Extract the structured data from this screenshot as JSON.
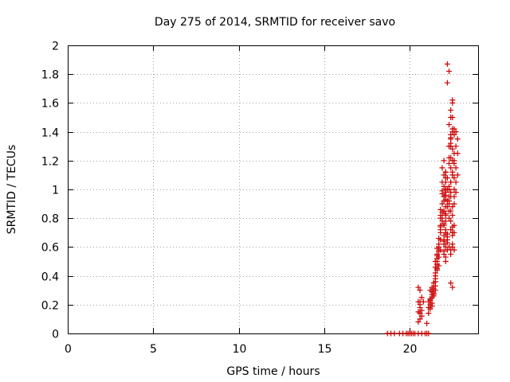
{
  "chart_data": {
    "type": "scatter",
    "title": "Day 275 of 2014, SRMTID for receiver savo",
    "xlabel": "GPS time / hours",
    "ylabel": "SRMTID / TECUs",
    "xlim": [
      0,
      24
    ],
    "ylim": [
      0,
      2
    ],
    "xticks": [
      0,
      5,
      10,
      15,
      20
    ],
    "yticks": [
      0,
      0.2,
      0.4,
      0.6,
      0.8,
      1,
      1.2,
      1.4,
      1.6,
      1.8,
      2
    ],
    "grid": true,
    "marker": "+",
    "colors": {
      "series": "#cc0000",
      "grid": "#a0a0a0",
      "axes": "#000000"
    },
    "series": [
      {
        "x": [
          18.7,
          18.9,
          19.1,
          19.4,
          19.6,
          19.8,
          19.9,
          20.0,
          20.1,
          20.2,
          20.3,
          20.5,
          20.7,
          20.9,
          21.0,
          21.1,
          20.5,
          20.6,
          20.7,
          20.5,
          20.6,
          20.8,
          20.6,
          20.7,
          20.5,
          20.6,
          20.7,
          20.6,
          20.6,
          20.5,
          21.0,
          21.1,
          21.2,
          21.1,
          21.2,
          21.3,
          21.4,
          21.2,
          21.3,
          21.4,
          21.4,
          21.5,
          21.3,
          21.5,
          21.4,
          21.3,
          21.2,
          21.1,
          21.3,
          21.4,
          21.2,
          21.3,
          21.5,
          21.6,
          21.5,
          21.6,
          21.7,
          21.5,
          21.6,
          21.7,
          21.5,
          21.6,
          21.8,
          21.7,
          21.6,
          21.8,
          21.5,
          21.7,
          21.6,
          21.8,
          21.5,
          21.7,
          21.6,
          21.7,
          21.8,
          21.6,
          21.8,
          21.9,
          22.0,
          21.9,
          22.0,
          21.8,
          22.1,
          21.9,
          22.0,
          22.1,
          21.9,
          22.0,
          21.8,
          22.1,
          21.9,
          22.0,
          22.1,
          21.9,
          22.0,
          21.8,
          22.1,
          22.0,
          21.9,
          22.1,
          22.0,
          22.1,
          21.9,
          22.0,
          21.8,
          22.1,
          22.0,
          22.1,
          22.0,
          22.1,
          22.2,
          22.1,
          22.0,
          22.2,
          22.1,
          22.0,
          22.1,
          22.2,
          22.0,
          22.2,
          22.1,
          22.2,
          22.1,
          22.3,
          22.4,
          22.5,
          22.3,
          22.4,
          22.5,
          22.6,
          22.3,
          22.4,
          22.5,
          22.6,
          22.4,
          22.3,
          22.5,
          22.4,
          22.6,
          22.3,
          22.5,
          22.4,
          22.6,
          22.5,
          22.4,
          22.3,
          22.5,
          22.4,
          22.6,
          22.5,
          22.4,
          22.6,
          22.5,
          22.2,
          22.3,
          22.4,
          22.3,
          22.4,
          22.5,
          22.3,
          22.4,
          22.5,
          22.3,
          22.4,
          22.5,
          22.4,
          22.3,
          22.5,
          22.4,
          22.6,
          22.6,
          22.7,
          22.8,
          22.7,
          22.6,
          22.8,
          22.7,
          22.6,
          22.8,
          22.7,
          22.6,
          22.7,
          22.2,
          22.3,
          22.2,
          22.3,
          22.5,
          22.4,
          22.5,
          22.4,
          22.6,
          22.5,
          22.0,
          22.1,
          22.2,
          22.1,
          22.2,
          22.3,
          22.1,
          22.2,
          22.3,
          22.4,
          22.5,
          22.4
        ],
        "y": [
          0,
          0,
          0,
          0,
          0,
          0,
          0,
          0,
          0,
          0,
          0,
          0,
          0,
          0,
          0,
          0,
          0.32,
          0.3,
          0.25,
          0.22,
          0.2,
          0.22,
          0.18,
          0.16,
          0.15,
          0.14,
          0.12,
          0.22,
          0.1,
          0.08,
          0.07,
          0.18,
          0.2,
          0.22,
          0.24,
          0.25,
          0.28,
          0.3,
          0.32,
          0.27,
          0.35,
          0.3,
          0.19,
          0.33,
          0.26,
          0.21,
          0.17,
          0.14,
          0.29,
          0.31,
          0.23,
          0.27,
          0.4,
          0.45,
          0.5,
          0.55,
          0.6,
          0.42,
          0.48,
          0.53,
          0.38,
          0.44,
          0.58,
          0.62,
          0.5,
          0.65,
          0.46,
          0.57,
          0.52,
          0.7,
          0.36,
          0.47,
          0.54,
          0.66,
          0.72,
          0.59,
          0.75,
          0.8,
          0.85,
          0.9,
          0.95,
          0.82,
          1.0,
          1.05,
          1.1,
          0.88,
          0.78,
          0.92,
          0.86,
          1.12,
          0.97,
          1.02,
          0.93,
          0.84,
          0.68,
          0.74,
          1.08,
          0.64,
          1.15,
          0.96,
          1.2,
          0.83,
          0.99,
          0.76,
          0.8,
          1.0,
          0.55,
          0.6,
          0.65,
          0.7,
          0.58,
          0.53,
          0.62,
          0.67,
          0.72,
          0.57,
          0.5,
          0.63,
          0.75,
          0.69,
          0.82,
          0.88,
          0.78,
          1.0,
          1.05,
          1.1,
          0.95,
          1.15,
          1.2,
          1.25,
          1.3,
          1.35,
          1.4,
          1.18,
          0.98,
          1.45,
          1.12,
          1.5,
          1.38,
          0.92,
          1.28,
          1.55,
          1.08,
          1.6,
          1.22,
          1.02,
          1.62,
          1.32,
          1.42,
          0.88,
          0.85,
          0.75,
          0.7,
          0.65,
          0.6,
          0.55,
          0.8,
          0.72,
          0.68,
          0.9,
          0.78,
          0.62,
          0.85,
          0.58,
          0.82,
          0.95,
          1.0,
          0.74,
          1.05,
          0.7,
          1.0,
          1.05,
          1.1,
          1.15,
          1.2,
          1.25,
          1.3,
          0.95,
          1.35,
          1.4,
          0.9,
          0.98,
          1.74,
          1.82,
          1.87,
          1.3,
          1.5,
          1.38,
          0.6,
          0.35,
          0.58,
          0.32,
          0.95,
          1.05,
          0.92,
          1.12,
          1.0,
          1.18,
          0.98,
          1.08,
          1.22,
          1.3,
          1.42,
          1.36
        ]
      }
    ]
  }
}
